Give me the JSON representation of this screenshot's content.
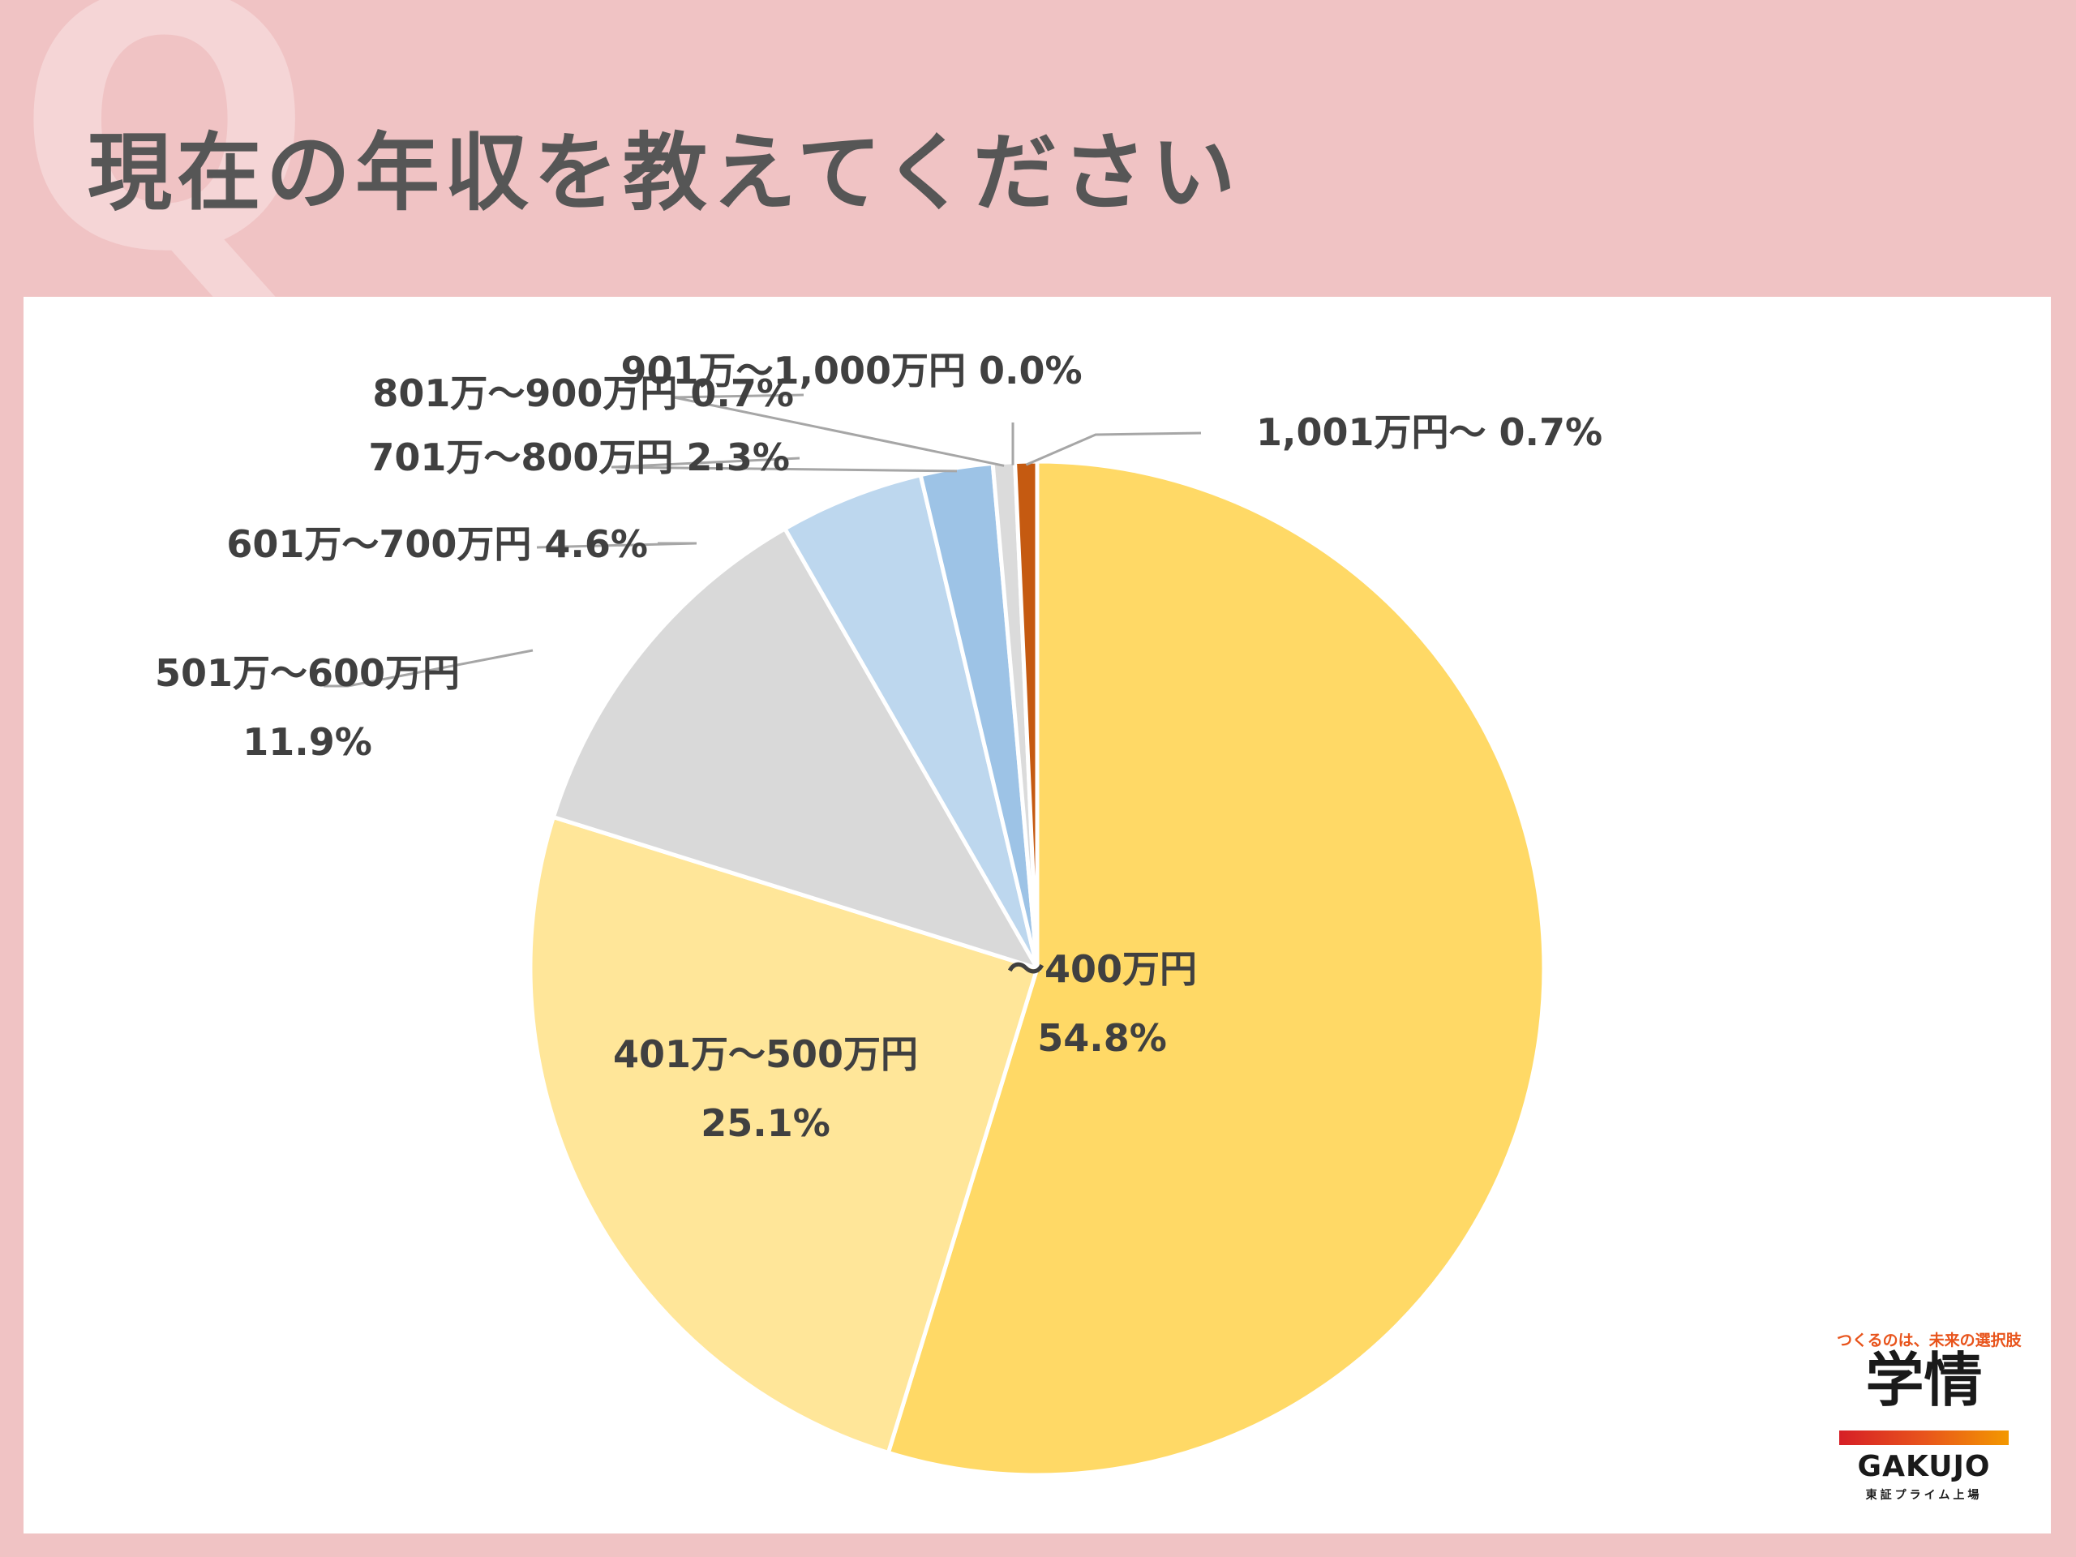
{
  "page": {
    "q_letter": "Q",
    "title": "現在の年収を教えてください"
  },
  "chart_data": {
    "type": "pie",
    "start_angle_deg": 0,
    "direction": "clockwise",
    "slices": [
      {
        "label": "～400万円",
        "value": 54.8,
        "value_label": "54.8%",
        "color": "#ffd966"
      },
      {
        "label": "401万～500万円",
        "value": 25.1,
        "value_label": "25.1%",
        "color": "#ffe699"
      },
      {
        "label": "501万～600万円",
        "value": 11.9,
        "value_label": "11.9%",
        "color": "#d9d9d9"
      },
      {
        "label": "601万～700万円",
        "value": 4.6,
        "value_label": "4.6%",
        "color": "#bdd7ee"
      },
      {
        "label": "701万～800万円",
        "value": 2.3,
        "value_label": "2.3%",
        "color": "#9dc3e6"
      },
      {
        "label": "801万～900万円",
        "value": 0.7,
        "value_label": "0.7%",
        "color": "#dbdbdb"
      },
      {
        "label": "901万～1,000万円",
        "value": 0.0,
        "value_label": "0.0%",
        "color": "#a9a9a9"
      },
      {
        "label": "1,001万円～",
        "value": 0.7,
        "value_label": "0.7%",
        "color": "#c55a11"
      }
    ]
  },
  "logo": {
    "tagline": "つくるのは、未来の選択肢",
    "mark": "学情",
    "word": "GAKUJO",
    "sub": "東証プライム上場",
    "bar_colors": [
      "#d61f26",
      "#e8541c",
      "#f39800"
    ]
  }
}
